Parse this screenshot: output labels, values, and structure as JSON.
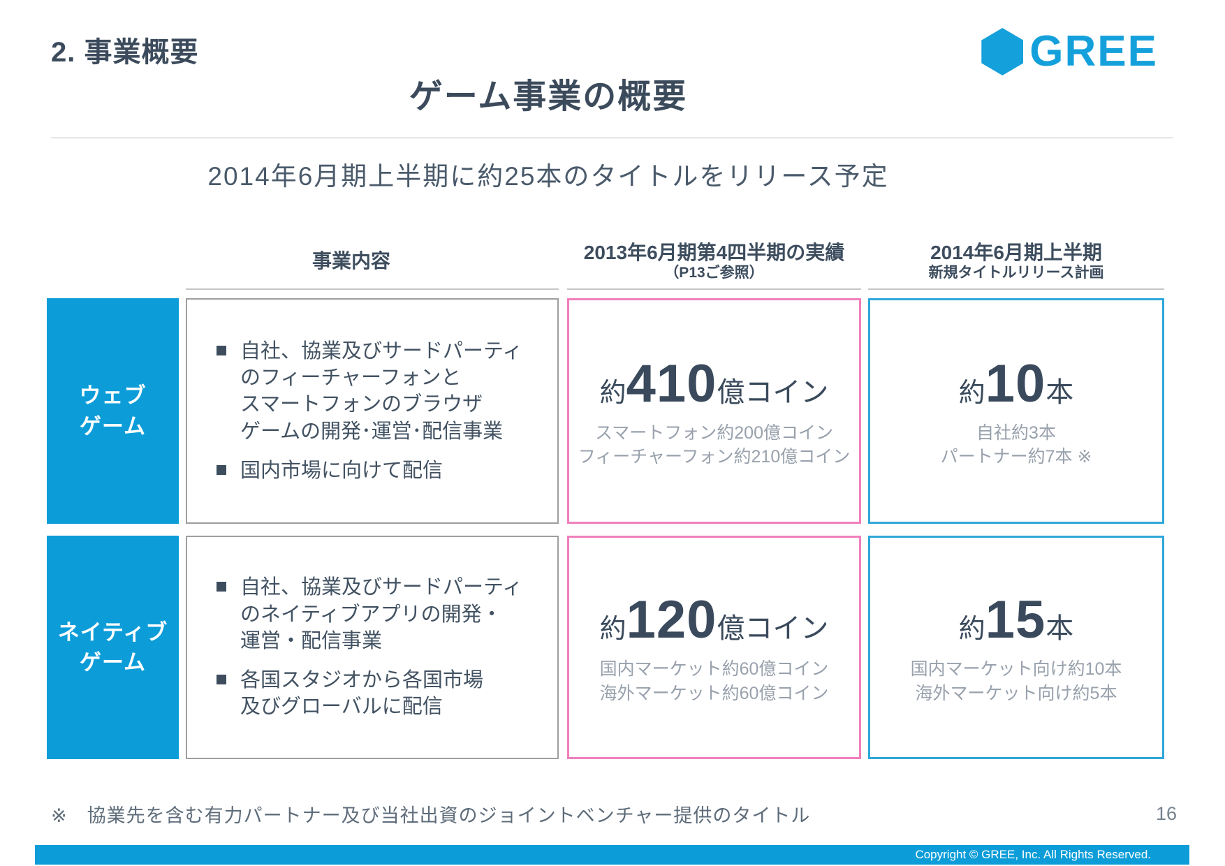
{
  "slide": {
    "section_title": "2. 事業概要",
    "title": "ゲーム事業の概要",
    "subtitle": "2014年6月期上半期に約25本のタイトルをリリース予定",
    "footnote": "※　協業先を含む有力パートナー及び当社出資のジョイントベンチャー提供のタイトル",
    "page_number": "16",
    "copyright": "Copyright © GREE, Inc. All Rights Reserved."
  },
  "logo": {
    "text": "GREE",
    "hexagon_icon": "hexagon",
    "color": "#14A0DB"
  },
  "colors": {
    "brand_blue": "#0C9DD9",
    "dark_slate_text": "#3C4B5C",
    "body_text": "#425262",
    "muted_note_text": "#98A1AC",
    "pink_border": "#F07FBC",
    "blue_border": "#2FA7D9",
    "gray_border": "#9E9E9E"
  },
  "table": {
    "headers": {
      "business": "事業内容",
      "q4_line1": "2013年6月期第4四半期の実績",
      "q4_line2": "（P13ご参照）",
      "h1_line1": "2014年6月期上半期",
      "h1_line2": "新規タイトルリリース計画"
    },
    "rows": [
      {
        "label": "ウェブ\nゲーム",
        "bullets": [
          "自社、協業及びサードパーティ\nのフィーチャーフォンと\nスマートフォンのブラウザ\nゲームの開発･運営･配信事業",
          "国内市場に向けて配信"
        ],
        "q4": {
          "prefix": "約",
          "value": "410",
          "suffix": "億コイン",
          "notes": [
            "スマートフォン約200億コイン",
            "フィーチャーフォン約210億コイン"
          ]
        },
        "h1": {
          "prefix": "約",
          "value": "10",
          "suffix": "本",
          "notes": [
            "自社約3本",
            "パートナー約7本 ※"
          ]
        }
      },
      {
        "label": "ネイティブ\nゲーム",
        "bullets": [
          "自社、協業及びサードパーティ\nのネイティブアプリの開発・\n運営・配信事業",
          "各国スタジオから各国市場\n及びグローバルに配信"
        ],
        "q4": {
          "prefix": "約",
          "value": "120",
          "suffix": "億コイン",
          "notes": [
            "国内マーケット約60億コイン",
            "海外マーケット約60億コイン"
          ]
        },
        "h1": {
          "prefix": "約",
          "value": "15",
          "suffix": "本",
          "notes": [
            "国内マーケット向け約10本",
            "海外マーケット向け約5本"
          ]
        }
      }
    ]
  }
}
